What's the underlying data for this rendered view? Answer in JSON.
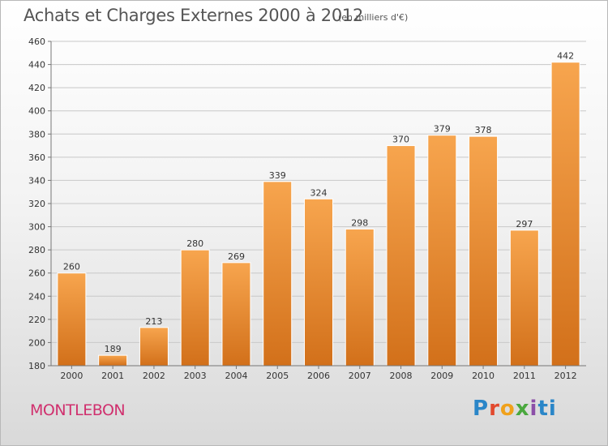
{
  "header": {
    "title": "Achats et Charges Externes 2000 à 2012",
    "unit_note": "(en milliers d'€)"
  },
  "footer": {
    "place": "MONTLEBON",
    "logo_text": "Proxiti"
  },
  "colors": {
    "bar_light": "#f7a54e",
    "bar_dark": "#d2701a",
    "grid": "#c8c8c8",
    "axis": "#777777",
    "place_text": "#d0306e"
  },
  "chart_data": {
    "type": "bar",
    "title": "Achats et Charges Externes 2000 à 2012",
    "subtitle": "(en milliers d'€)",
    "xlabel": "",
    "ylabel": "",
    "categories": [
      "2000",
      "2001",
      "2002",
      "2003",
      "2004",
      "2005",
      "2006",
      "2007",
      "2008",
      "2009",
      "2010",
      "2011",
      "2012"
    ],
    "values": [
      260,
      189,
      213,
      280,
      269,
      339,
      324,
      298,
      370,
      379,
      378,
      297,
      442
    ],
    "ylim": [
      180,
      460
    ],
    "yticks": [
      180,
      200,
      220,
      240,
      260,
      280,
      300,
      320,
      340,
      360,
      380,
      400,
      420,
      440,
      460
    ],
    "grid": true,
    "legend": "none"
  }
}
